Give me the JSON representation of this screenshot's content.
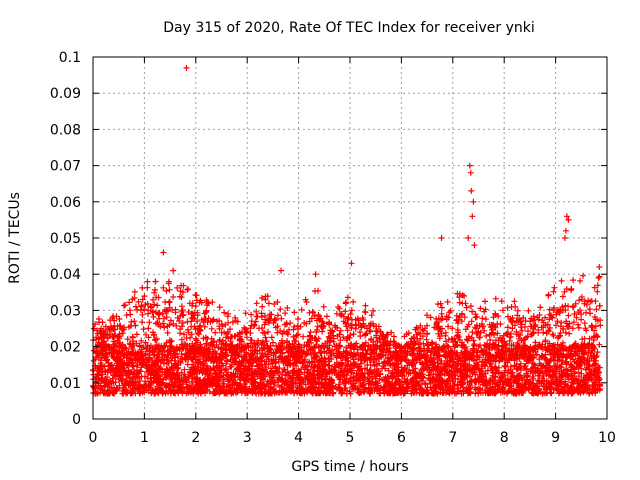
{
  "chart_data": {
    "type": "scatter",
    "title": "Day 315 of 2020, Rate Of TEC Index for receiver ynki",
    "xlabel": "GPS time / hours",
    "ylabel": "ROTI / TECUs",
    "xlim": [
      0,
      10
    ],
    "ylim": [
      0,
      0.1
    ],
    "xticks": [
      "0",
      "1",
      "2",
      "3",
      "4",
      "5",
      "6",
      "7",
      "8",
      "9",
      "10"
    ],
    "yticks": [
      "0",
      "0.01",
      "0.02",
      "0.03",
      "0.04",
      "0.05",
      "0.06",
      "0.07",
      "0.08",
      "0.09",
      "0.1"
    ],
    "grid": true,
    "marker": "+",
    "color": "#ff0000",
    "series": [
      {
        "name": "ROTI",
        "x_range": [
          0.0,
          9.87
        ],
        "typical_band": [
          0.004,
          0.02
        ],
        "notable_points": [
          {
            "x": 1.82,
            "y": 0.097
          },
          {
            "x": 1.37,
            "y": 0.046
          },
          {
            "x": 1.56,
            "y": 0.041
          },
          {
            "x": 3.66,
            "y": 0.041
          },
          {
            "x": 4.33,
            "y": 0.04
          },
          {
            "x": 5.03,
            "y": 0.043
          },
          {
            "x": 6.78,
            "y": 0.05
          },
          {
            "x": 7.33,
            "y": 0.07
          },
          {
            "x": 7.35,
            "y": 0.068
          },
          {
            "x": 7.36,
            "y": 0.063
          },
          {
            "x": 7.4,
            "y": 0.06
          },
          {
            "x": 7.38,
            "y": 0.056
          },
          {
            "x": 7.3,
            "y": 0.05
          },
          {
            "x": 7.42,
            "y": 0.048
          },
          {
            "x": 9.22,
            "y": 0.056
          },
          {
            "x": 9.25,
            "y": 0.055
          },
          {
            "x": 9.2,
            "y": 0.052
          },
          {
            "x": 9.18,
            "y": 0.05
          },
          {
            "x": 9.85,
            "y": 0.042
          }
        ],
        "envelope_hours": [
          0,
          0.2,
          0.5,
          1.0,
          1.3,
          1.8,
          2.2,
          2.8,
          3.4,
          3.7,
          4.0,
          4.3,
          4.6,
          5.0,
          5.5,
          6.0,
          6.5,
          7.0,
          7.5,
          8.0,
          8.5,
          9.0,
          9.5,
          9.87
        ],
        "envelope_max": [
          0.03,
          0.028,
          0.03,
          0.039,
          0.038,
          0.038,
          0.034,
          0.028,
          0.035,
          0.032,
          0.03,
          0.038,
          0.028,
          0.035,
          0.03,
          0.022,
          0.03,
          0.035,
          0.034,
          0.033,
          0.032,
          0.038,
          0.04,
          0.04
        ]
      }
    ]
  }
}
